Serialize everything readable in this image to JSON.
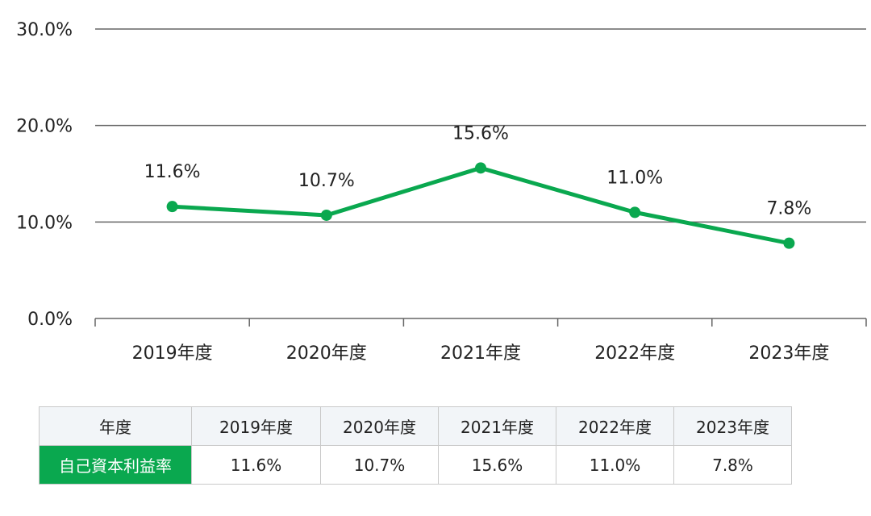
{
  "colors": {
    "line": "#0aa84f",
    "grid": "#666666",
    "row_head_bg": "#0aa84f",
    "header_bg": "#f2f5f8"
  },
  "chart_data": {
    "type": "line",
    "categories": [
      "2019年度",
      "2020年度",
      "2021年度",
      "2022年度",
      "2023年度"
    ],
    "series": [
      {
        "values": [
          11.6,
          10.7,
          15.6,
          11.0,
          7.8
        ]
      }
    ],
    "data_labels": [
      "11.6%",
      "10.7%",
      "15.6%",
      "11.0%",
      "7.8%"
    ],
    "y_ticks": [
      "0.0%",
      "10.0%",
      "20.0%",
      "30.0%"
    ],
    "y_tick_values": [
      0,
      10,
      20,
      30
    ],
    "ylim": [
      0,
      30
    ],
    "grid": true,
    "legend": "none"
  },
  "table": {
    "header_label": "年度",
    "years": [
      "2019年度",
      "2020年度",
      "2021年度",
      "2022年度",
      "2023年度"
    ],
    "row_label": "自己資本利益率",
    "values": [
      "11.6%",
      "10.7%",
      "15.6%",
      "11.0%",
      "7.8%"
    ]
  }
}
